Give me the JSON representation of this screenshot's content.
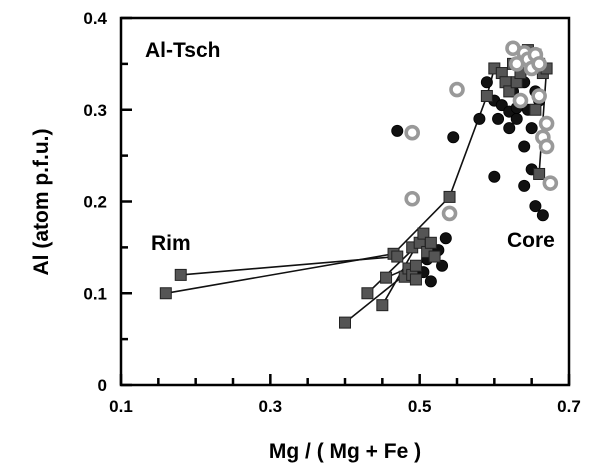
{
  "chart_data": {
    "type": "scatter",
    "title": "",
    "xlabel": "Mg / ( Mg + Fe )",
    "ylabel": "Al   (atom  p.f.u.)",
    "xlim": [
      0.1,
      0.7
    ],
    "ylim": [
      0,
      0.4
    ],
    "xticks": [
      "0.1",
      "0.3",
      "0.5",
      "0.7"
    ],
    "yticks": [
      "0",
      "0.1",
      "0.2",
      "0.3",
      "0.4"
    ],
    "annotations": {
      "panel": "Al-Tsch",
      "rim": "Rim",
      "core": "Core"
    },
    "grid": false,
    "colors": {
      "squares": "#555555",
      "dots": "#111111",
      "rings": "#999999"
    },
    "series": [
      {
        "marker": "square",
        "points": [
          [
            0.16,
            0.1
          ],
          [
            0.18,
            0.12
          ],
          [
            0.4,
            0.068
          ],
          [
            0.43,
            0.1
          ],
          [
            0.45,
            0.087
          ],
          [
            0.455,
            0.117
          ],
          [
            0.465,
            0.143
          ],
          [
            0.47,
            0.14
          ],
          [
            0.48,
            0.118
          ],
          [
            0.485,
            0.127
          ],
          [
            0.49,
            0.12
          ],
          [
            0.495,
            0.115
          ],
          [
            0.495,
            0.13
          ],
          [
            0.49,
            0.15
          ],
          [
            0.5,
            0.155
          ],
          [
            0.505,
            0.165
          ],
          [
            0.51,
            0.145
          ],
          [
            0.515,
            0.155
          ],
          [
            0.52,
            0.14
          ],
          [
            0.54,
            0.205
          ],
          [
            0.59,
            0.315
          ],
          [
            0.6,
            0.345
          ],
          [
            0.61,
            0.34
          ],
          [
            0.615,
            0.33
          ],
          [
            0.62,
            0.32
          ],
          [
            0.625,
            0.35
          ],
          [
            0.63,
            0.33
          ],
          [
            0.635,
            0.34
          ],
          [
            0.64,
            0.36
          ],
          [
            0.645,
            0.365
          ],
          [
            0.65,
            0.35
          ],
          [
            0.655,
            0.36
          ],
          [
            0.66,
            0.35
          ],
          [
            0.665,
            0.34
          ],
          [
            0.67,
            0.345
          ],
          [
            0.655,
            0.3
          ],
          [
            0.66,
            0.23
          ]
        ],
        "lines": [
          [
            [
              0.16,
              0.1
            ],
            [
              0.465,
              0.143
            ],
            [
              0.54,
              0.205
            ],
            [
              0.59,
              0.315
            ],
            [
              0.6,
              0.345
            ]
          ],
          [
            [
              0.18,
              0.12
            ],
            [
              0.47,
              0.14
            ]
          ],
          [
            [
              0.43,
              0.1
            ],
            [
              0.5,
              0.155
            ]
          ],
          [
            [
              0.45,
              0.087
            ],
            [
              0.505,
              0.165
            ]
          ],
          [
            [
              0.4,
              0.068
            ],
            [
              0.495,
              0.13
            ]
          ],
          [
            [
              0.455,
              0.117
            ],
            [
              0.52,
              0.14
            ]
          ],
          [
            [
              0.635,
              0.34
            ],
            [
              0.645,
              0.365
            ],
            [
              0.665,
              0.34
            ],
            [
              0.67,
              0.345
            ],
            [
              0.66,
              0.23
            ]
          ]
        ]
      },
      {
        "marker": "dot",
        "points": [
          [
            0.47,
            0.277
          ],
          [
            0.545,
            0.27
          ],
          [
            0.58,
            0.29
          ],
          [
            0.59,
            0.33
          ],
          [
            0.6,
            0.31
          ],
          [
            0.6,
            0.227
          ],
          [
            0.605,
            0.29
          ],
          [
            0.61,
            0.305
          ],
          [
            0.615,
            0.33
          ],
          [
            0.62,
            0.28
          ],
          [
            0.62,
            0.298
          ],
          [
            0.625,
            0.32
          ],
          [
            0.63,
            0.29
          ],
          [
            0.63,
            0.302
          ],
          [
            0.635,
            0.31
          ],
          [
            0.64,
            0.26
          ],
          [
            0.64,
            0.217
          ],
          [
            0.64,
            0.33
          ],
          [
            0.645,
            0.3
          ],
          [
            0.65,
            0.28
          ],
          [
            0.65,
            0.235
          ],
          [
            0.655,
            0.195
          ],
          [
            0.655,
            0.32
          ],
          [
            0.66,
            0.31
          ],
          [
            0.665,
            0.185
          ],
          [
            0.505,
            0.123
          ],
          [
            0.51,
            0.137
          ],
          [
            0.515,
            0.113
          ],
          [
            0.525,
            0.147
          ],
          [
            0.53,
            0.13
          ],
          [
            0.535,
            0.16
          ]
        ]
      },
      {
        "marker": "ring",
        "points": [
          [
            0.49,
            0.275
          ],
          [
            0.49,
            0.203
          ],
          [
            0.54,
            0.187
          ],
          [
            0.55,
            0.322
          ],
          [
            0.625,
            0.367
          ],
          [
            0.63,
            0.35
          ],
          [
            0.635,
            0.31
          ],
          [
            0.64,
            0.362
          ],
          [
            0.645,
            0.355
          ],
          [
            0.65,
            0.345
          ],
          [
            0.655,
            0.36
          ],
          [
            0.66,
            0.35
          ],
          [
            0.66,
            0.315
          ],
          [
            0.665,
            0.27
          ],
          [
            0.67,
            0.285
          ],
          [
            0.67,
            0.26
          ],
          [
            0.675,
            0.22
          ]
        ]
      }
    ]
  }
}
